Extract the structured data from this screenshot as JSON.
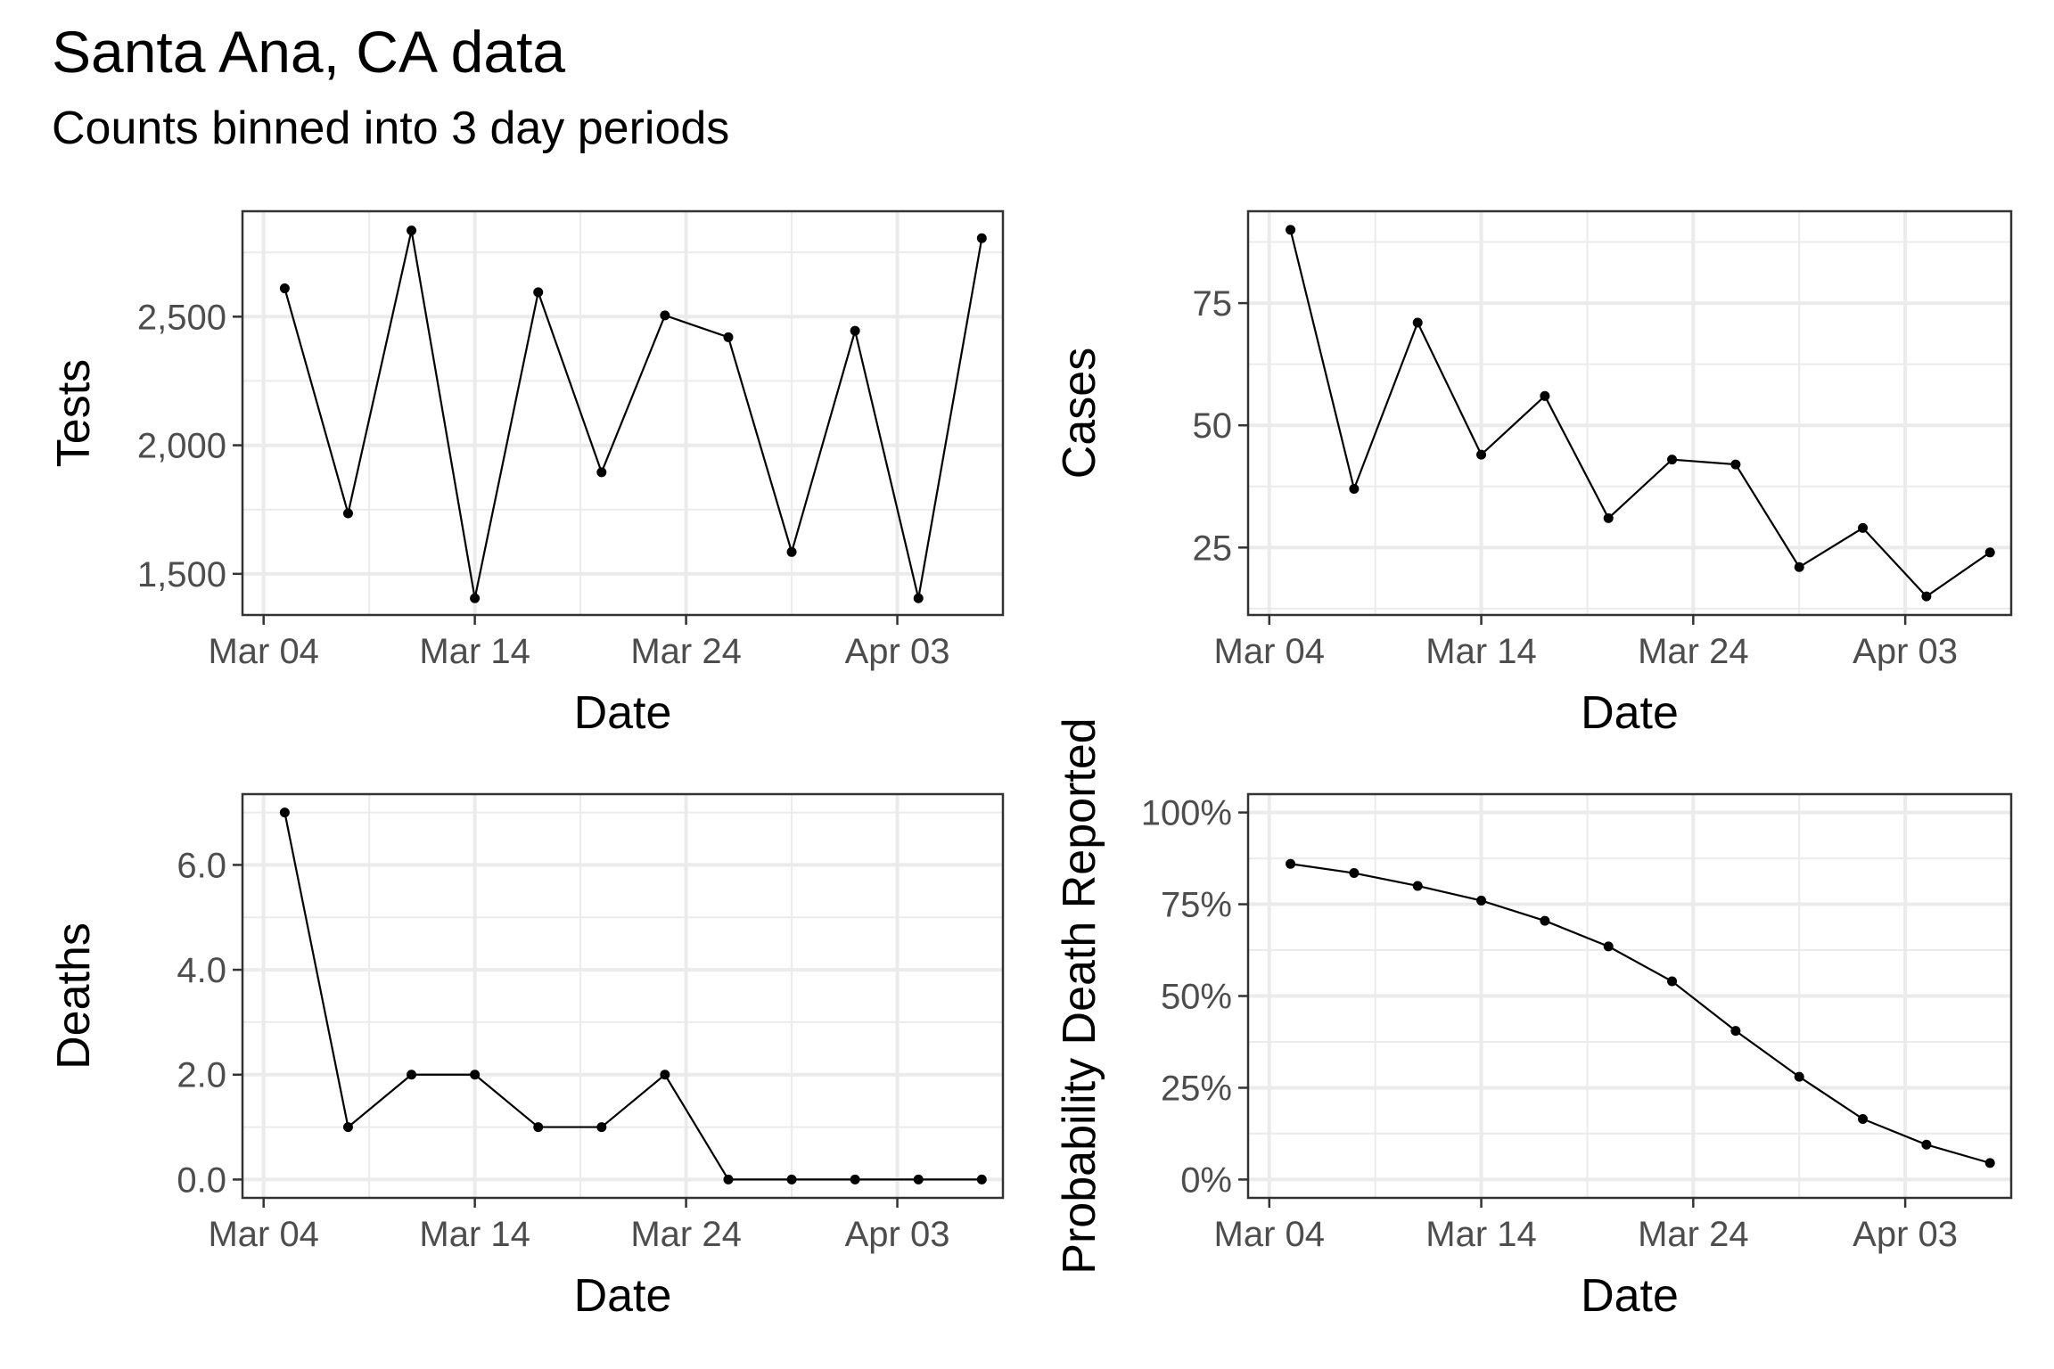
{
  "title": "Santa Ana, CA data",
  "subtitle": "Counts binned into 3 day periods",
  "chart_data": [
    {
      "type": "line",
      "id": "tests",
      "xlabel": "Date",
      "ylabel": "Tests",
      "x": [
        "2020-03-05",
        "2020-03-08",
        "2020-03-11",
        "2020-03-14",
        "2020-03-17",
        "2020-03-20",
        "2020-03-23",
        "2020-03-26",
        "2020-03-29",
        "2020-04-01",
        "2020-04-04",
        "2020-04-07"
      ],
      "values": [
        2610,
        1735,
        2835,
        1405,
        2595,
        1895,
        2505,
        2420,
        1585,
        2445,
        1405,
        2805
      ],
      "xlim": [
        "2020-03-03",
        "2020-04-08"
      ],
      "ylim": [
        1340,
        2910
      ],
      "xticks": [
        "2020-03-04",
        "2020-03-14",
        "2020-03-24",
        "2020-04-03"
      ],
      "xtick_labels": [
        "Mar 04",
        "Mar 14",
        "Mar 24",
        "Apr 03"
      ],
      "yticks": [
        1500,
        2000,
        2500
      ],
      "ytick_labels": [
        "1,500",
        "2,000",
        "2,500"
      ],
      "yminor": [
        1750,
        2250,
        2750
      ],
      "grid": true
    },
    {
      "type": "line",
      "id": "cases",
      "xlabel": "Date",
      "ylabel": "Cases",
      "x": [
        "2020-03-05",
        "2020-03-08",
        "2020-03-11",
        "2020-03-14",
        "2020-03-17",
        "2020-03-20",
        "2020-03-23",
        "2020-03-26",
        "2020-03-29",
        "2020-04-01",
        "2020-04-04",
        "2020-04-07"
      ],
      "values": [
        90,
        37,
        71,
        44,
        56,
        31,
        43,
        42,
        21,
        29,
        15,
        24
      ],
      "xlim": [
        "2020-03-03",
        "2020-04-08"
      ],
      "ylim": [
        11.2,
        93.8
      ],
      "xticks": [
        "2020-03-04",
        "2020-03-14",
        "2020-03-24",
        "2020-04-03"
      ],
      "xtick_labels": [
        "Mar 04",
        "Mar 14",
        "Mar 24",
        "Apr 03"
      ],
      "yticks": [
        25,
        50,
        75
      ],
      "ytick_labels": [
        "25",
        "50",
        "75"
      ],
      "yminor": [
        12.5,
        37.5,
        62.5,
        87.5
      ],
      "grid": true
    },
    {
      "type": "line",
      "id": "deaths",
      "xlabel": "Date",
      "ylabel": "Deaths",
      "x": [
        "2020-03-05",
        "2020-03-08",
        "2020-03-11",
        "2020-03-14",
        "2020-03-17",
        "2020-03-20",
        "2020-03-23",
        "2020-03-26",
        "2020-03-29",
        "2020-04-01",
        "2020-04-04",
        "2020-04-07"
      ],
      "values": [
        7,
        1,
        2,
        2,
        1,
        1,
        2,
        0,
        0,
        0,
        0,
        0
      ],
      "xlim": [
        "2020-03-03",
        "2020-04-08"
      ],
      "ylim": [
        -0.35,
        7.35
      ],
      "xticks": [
        "2020-03-04",
        "2020-03-14",
        "2020-03-24",
        "2020-04-03"
      ],
      "xtick_labels": [
        "Mar 04",
        "Mar 14",
        "Mar 24",
        "Apr 03"
      ],
      "yticks": [
        0,
        2,
        4,
        6
      ],
      "ytick_labels": [
        "0.0",
        "2.0",
        "4.0",
        "6.0"
      ],
      "yminor": [
        1,
        3,
        5,
        7
      ],
      "grid": true
    },
    {
      "type": "line",
      "id": "probability",
      "xlabel": "Date",
      "ylabel": "Probability Death Reported",
      "x": [
        "2020-03-05",
        "2020-03-08",
        "2020-03-11",
        "2020-03-14",
        "2020-03-17",
        "2020-03-20",
        "2020-03-23",
        "2020-03-26",
        "2020-03-29",
        "2020-04-01",
        "2020-04-04",
        "2020-04-07"
      ],
      "values": [
        0.86,
        0.835,
        0.8,
        0.76,
        0.705,
        0.635,
        0.54,
        0.405,
        0.28,
        0.165,
        0.095,
        0.045
      ],
      "xlim": [
        "2020-03-03",
        "2020-04-08"
      ],
      "ylim": [
        -0.05,
        1.05
      ],
      "xticks": [
        "2020-03-04",
        "2020-03-14",
        "2020-03-24",
        "2020-04-03"
      ],
      "xtick_labels": [
        "Mar 04",
        "Mar 14",
        "Mar 24",
        "Apr 03"
      ],
      "yticks": [
        0,
        0.25,
        0.5,
        0.75,
        1.0
      ],
      "ytick_labels": [
        "0%",
        "25%",
        "50%",
        "75%",
        "100%"
      ],
      "yminor": [
        0.125,
        0.375,
        0.625,
        0.875
      ],
      "grid": true
    }
  ]
}
